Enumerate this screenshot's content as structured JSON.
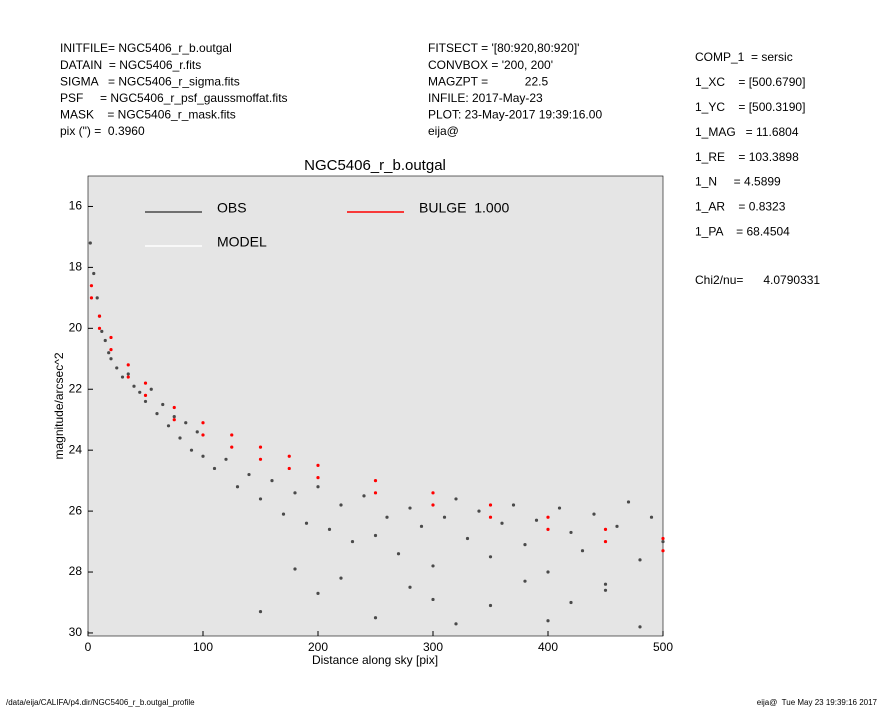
{
  "header_left": [
    "INITFILE= NGC5406_r_b.outgal",
    "DATAIN  = NGC5406_r.fits",
    "SIGMA   = NGC5406_r_sigma.fits",
    "PSF     = NGC5406_r_psf_gaussmoffat.fits",
    "MASK    = NGC5406_r_mask.fits",
    "pix (\") =  0.3960"
  ],
  "header_middle": [
    "FITSECT = '[80:920,80:920]'",
    "CONVBOX = '200, 200'",
    "MAGZPT =           22.5",
    "INFILE: 2017-May-23",
    "PLOT: 23-May-2017 19:39:16.00",
    "eija@"
  ],
  "header_right": [
    "COMP_1  = sersic",
    "1_XC    = [500.6790]",
    "1_YC    = [500.3190]",
    "1_MAG   = 11.6804",
    "1_RE    = 103.3898",
    "1_N     = 4.5899",
    "1_AR    = 0.8323",
    "1_PA    = 68.4504"
  ],
  "chi2": "Chi2/nu=      4.0790331",
  "footer_left": "/data/eija/CALIFA/p4.dir/NGC5406_r_b.outgal_profile",
  "footer_right": "eija@  Tue May 23 19:39:16 2017",
  "chart_data": {
    "type": "scatter",
    "title": "NGC5406_r_b.outgal",
    "x_label": "Distance along sky [pix]",
    "y_label": "magnitude/arcsec^2",
    "xlim": [
      0,
      500
    ],
    "xticks": [
      0,
      100,
      200,
      300,
      400,
      500
    ],
    "ylim": [
      15,
      30.1
    ],
    "yticks": [
      16,
      18,
      20,
      22,
      24,
      26,
      28,
      30
    ],
    "y_inverted": true,
    "background": "#e5e5e5",
    "series": [
      {
        "name": "OBS",
        "color": "#4a4a4a",
        "x": [
          2,
          5,
          8,
          10,
          12,
          15,
          18,
          20,
          25,
          30,
          35,
          40,
          45,
          50,
          55,
          60,
          65,
          70,
          75,
          80,
          85,
          90,
          95,
          100,
          110,
          120,
          130,
          140,
          150,
          160,
          170,
          180,
          190,
          200,
          210,
          220,
          230,
          240,
          250,
          260,
          270,
          280,
          290,
          300,
          310,
          320,
          330,
          340,
          350,
          360,
          370,
          380,
          390,
          400,
          410,
          420,
          430,
          440,
          450,
          460,
          470,
          480,
          490,
          500,
          150,
          200,
          250,
          300,
          350,
          400,
          450,
          180,
          220,
          280,
          320,
          380,
          420,
          480
        ],
        "values": [
          17.2,
          18.2,
          19.0,
          19.6,
          20.1,
          20.4,
          20.8,
          21.0,
          21.3,
          21.6,
          21.5,
          21.9,
          22.1,
          22.4,
          22.0,
          22.8,
          22.5,
          23.2,
          22.9,
          23.6,
          23.1,
          24.0,
          23.4,
          24.2,
          24.6,
          24.3,
          25.2,
          24.8,
          25.6,
          25.0,
          26.1,
          25.4,
          26.4,
          25.2,
          26.6,
          25.8,
          27.0,
          25.5,
          26.8,
          26.2,
          27.4,
          25.9,
          26.5,
          27.8,
          26.2,
          25.6,
          26.9,
          26.0,
          27.5,
          26.4,
          25.8,
          27.1,
          26.3,
          28.0,
          25.9,
          26.7,
          27.3,
          26.1,
          28.4,
          26.5,
          25.7,
          27.6,
          26.2,
          27.0,
          29.3,
          28.7,
          29.5,
          28.9,
          29.1,
          29.6,
          28.6,
          27.9,
          28.2,
          28.5,
          29.7,
          28.3,
          29.0,
          29.8
        ]
      },
      {
        "name": "MODEL",
        "color": "#ffffff",
        "x": [],
        "values": []
      },
      {
        "name": "BULGE  1.000",
        "color": "#ff0000",
        "x": [
          3,
          3,
          10,
          10,
          20,
          20,
          35,
          35,
          50,
          50,
          75,
          75,
          100,
          100,
          125,
          125,
          150,
          150,
          175,
          175,
          200,
          200,
          250,
          250,
          300,
          300,
          350,
          350,
          400,
          400,
          450,
          450,
          500,
          500
        ],
        "values": [
          18.6,
          19.0,
          19.6,
          20.0,
          20.3,
          20.7,
          21.2,
          21.6,
          21.8,
          22.2,
          22.6,
          23.0,
          23.1,
          23.5,
          23.5,
          23.9,
          23.9,
          24.3,
          24.2,
          24.6,
          24.5,
          24.9,
          25.0,
          25.4,
          25.4,
          25.8,
          25.8,
          26.2,
          26.2,
          26.6,
          26.6,
          27.0,
          26.9,
          27.3
        ]
      }
    ]
  }
}
